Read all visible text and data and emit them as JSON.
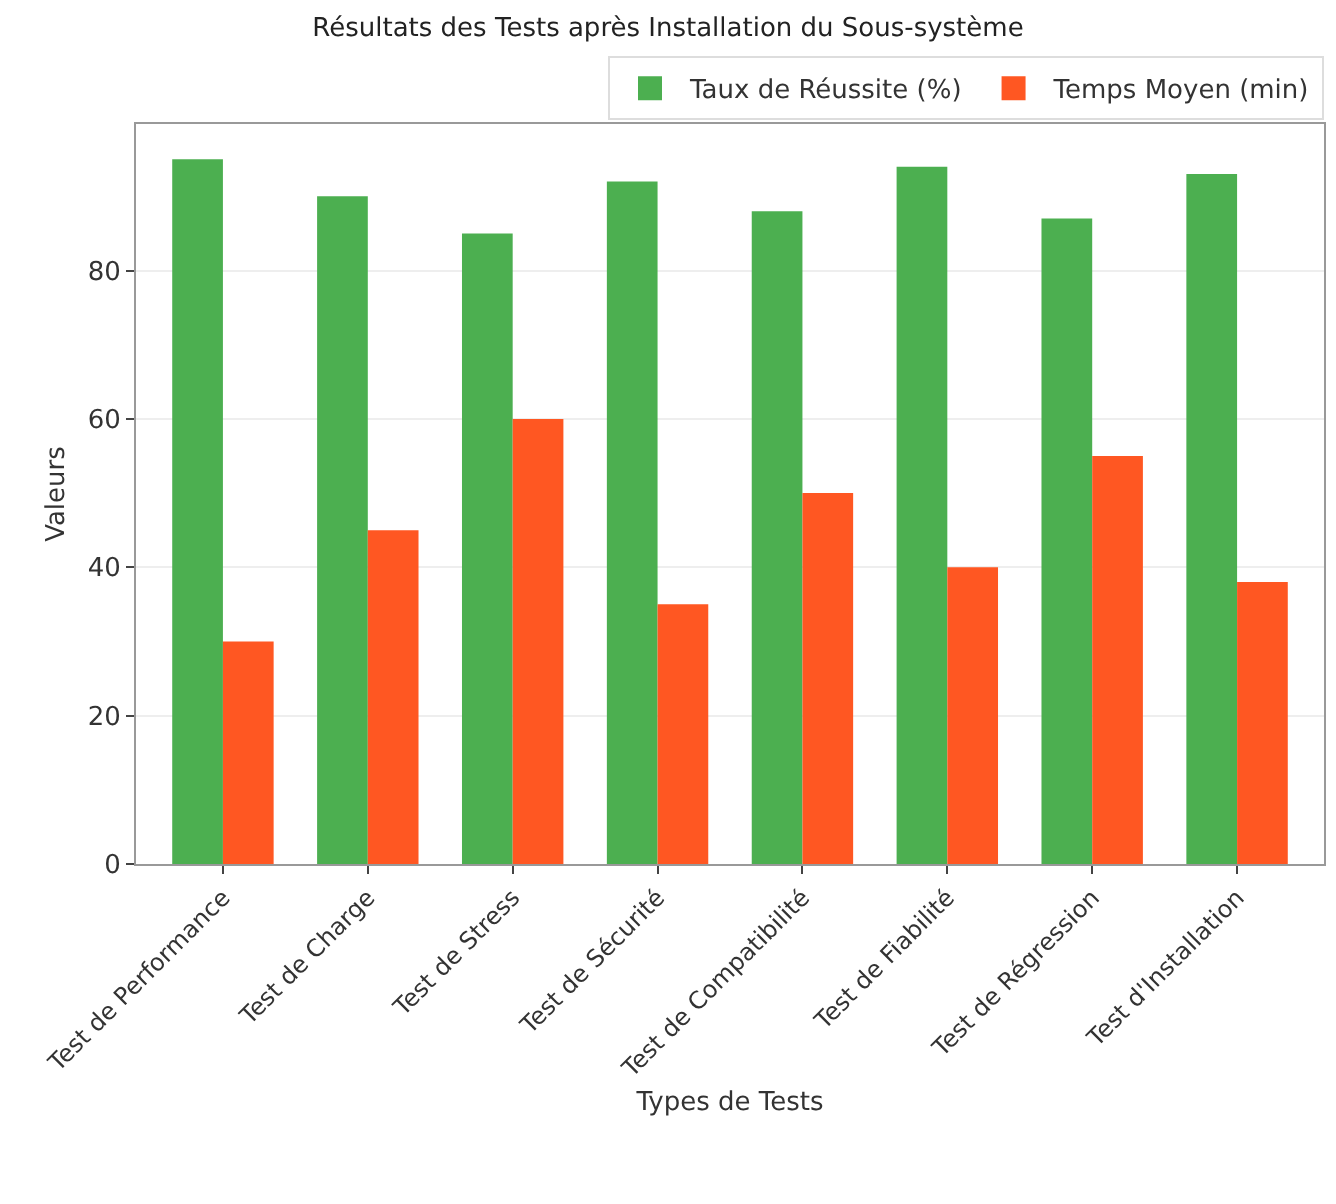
{
  "chart_data": {
    "type": "bar",
    "title": "Résultats des Tests après Installation du Sous-système",
    "xlabel": "Types de Tests",
    "ylabel": "Valeurs",
    "categories": [
      "Test de Performance",
      "Test de Charge",
      "Test de Stress",
      "Test de Sécurité",
      "Test de Compatibilité",
      "Test de Fiabilité",
      "Test de Régression",
      "Test d'Installation"
    ],
    "series": [
      {
        "name": "Taux de Réussite (%)",
        "color": "#4caf50",
        "values": [
          95,
          90,
          85,
          92,
          88,
          94,
          87,
          93
        ]
      },
      {
        "name": "Temps Moyen (min)",
        "color": "#ff5722",
        "values": [
          30,
          45,
          60,
          35,
          50,
          40,
          55,
          38
        ]
      }
    ],
    "ylim": [
      0,
      99.75
    ],
    "yticks": [
      0,
      20,
      40,
      60,
      80
    ],
    "grid": "y",
    "legend": "top right"
  }
}
